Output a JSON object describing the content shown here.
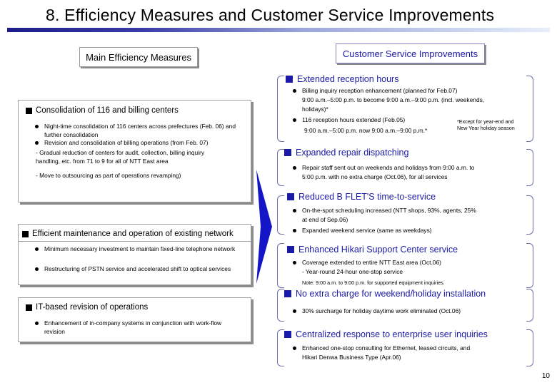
{
  "title": "8. Efficiency Measures and Customer Service Improvements",
  "page_number": "10",
  "left": {
    "header": "Main Efficiency Measures",
    "boxes": [
      {
        "title": "Consolidation of 116 and billing centers",
        "bullets": [
          "Night-time consolidation of 116 centers across prefectures (Feb. 06) and further consolidation",
          "Revision and consolidation of billing operations (from Feb. 07)"
        ],
        "subs": [
          "- Gradual reduction of centers for audit, collection, billing inquiry handling, etc. from 71 to 9 for all of NTT East area",
          "- Move to outsourcing as part of operations revamping)"
        ]
      },
      {
        "title": "Efficient maintenance and operation of existing network",
        "bullets": [
          "Minimum necessary investment to maintain fixed-line telephone network",
          "Restructuring of PSTN service and accelerated shift to optical services"
        ]
      },
      {
        "title": "IT-based revision of operations",
        "bullets": [
          "Enhancement of in-company systems in conjunction with work-flow revision"
        ]
      }
    ]
  },
  "right": {
    "header": "Customer Service Improvements",
    "s1": {
      "title": "Extended reception hours",
      "b1": "Billing inquiry reception enhancement (planned for Feb.07)",
      "b1l2": "9:00 a.m.–5:00 p.m. to become 9:00 a.m.–9:00 p.m. (incl. weekends,",
      "b1l3": "holidays)*",
      "b2": "116 reception hours extended (Feb.05)",
      "b2l2": "9:00 a.m.–5:00 p.m. now 9:00 a.m.–9:00 p.m.*",
      "note1": "*Except for year-end and",
      "note2": "New Year holiday season"
    },
    "s2": {
      "title": "Expanded repair dispatching",
      "b1": "Repair staff sent out on weekends and holidays from 9:00 a.m. to",
      "b1l2": "5:00 p.m. with no extra charge (Oct.06), for all services"
    },
    "s3": {
      "title": "Reduced B FLET'S time-to-service",
      "b1": "On-the-spot scheduling increased (NTT shops, 93%, agents, 25%",
      "b1l2": "at end of Sep.06)",
      "b2": "Expanded weekend service (same as weekdays)"
    },
    "s4": {
      "title": "Enhanced Hikari Support Center service",
      "b1": "Coverage extended to entire NTT East area (Oct.06)",
      "sub": "- Year-round 24-hour one-stop service",
      "note": "Note: 9:00 a.m. to 9:00 p.m. for supported equipment inquiries."
    },
    "s5": {
      "title": "No extra charge for weekend/holiday installation",
      "b1": "30% surcharge for holiday daytime work eliminated (Oct.06)"
    },
    "s6": {
      "title": "Centralized response to enterprise user inquiries",
      "b1": "Enhanced one-stop consulting for Ethernet, leased circuits, and",
      "b1l2": "Hikari Denwa Business Type (Apr.06)"
    }
  },
  "colors": {
    "accent_blue": "#1a1aa6",
    "arrow_blue": "#1515c8"
  }
}
